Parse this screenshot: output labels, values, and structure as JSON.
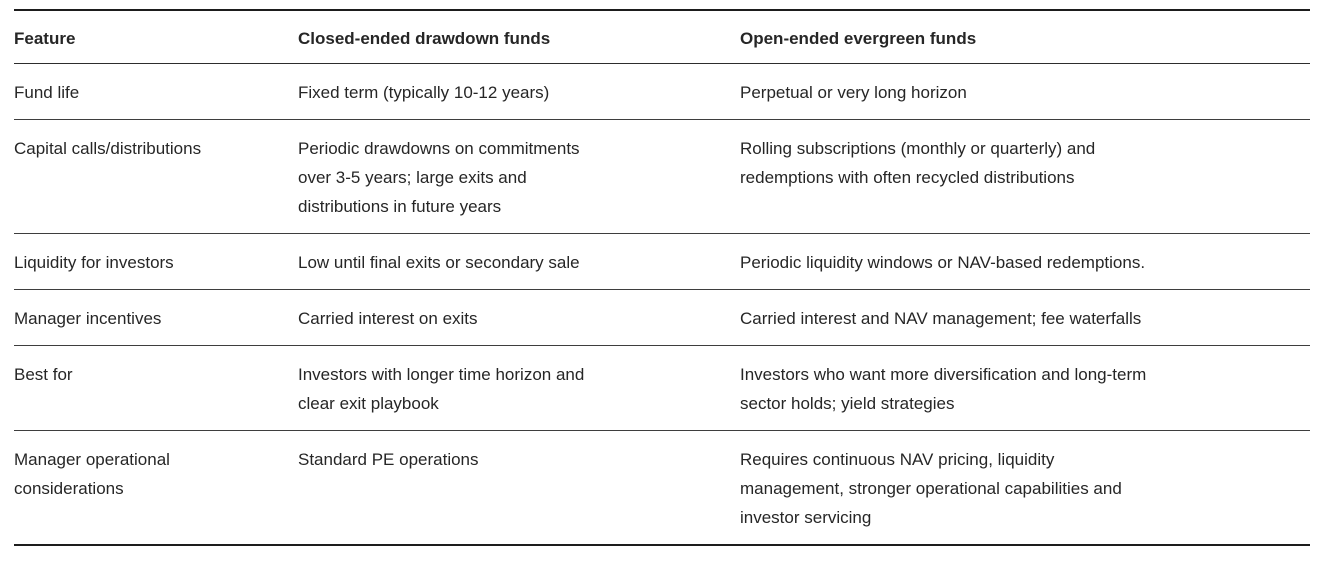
{
  "colors": {
    "background": "#ffffff",
    "text": "#262626",
    "rule_strong": "#1d1d1d",
    "rule_row": "#3e3e3e"
  },
  "table": {
    "columns": [
      "Feature",
      "Closed-ended drawdown funds",
      "Open-ended evergreen funds"
    ],
    "rows": [
      {
        "feature": "Fund life",
        "closed": "Fixed term (typically 10-12 years)",
        "open": "Perpetual or very long horizon"
      },
      {
        "feature": "Capital calls/distributions",
        "closed": "Periodic drawdowns on commitments\nover 3-5 years; large exits and\ndistributions in future years",
        "open": "Rolling subscriptions (monthly or quarterly) and\nredemptions with often recycled distributions"
      },
      {
        "feature": "Liquidity for investors",
        "closed": "Low until final exits or secondary sale",
        "open": "Periodic liquidity windows or NAV-based redemptions."
      },
      {
        "feature": "Manager incentives",
        "closed": "Carried interest on exits",
        "open": "Carried interest and NAV management; fee waterfalls"
      },
      {
        "feature": "Best for",
        "closed": "Investors with longer time horizon and\nclear exit playbook",
        "open": "Investors who want more diversification and long-term\nsector holds; yield strategies"
      },
      {
        "feature": "Manager operational\nconsiderations",
        "closed": "Standard PE operations",
        "open": "Requires continuous NAV pricing, liquidity\nmanagement, stronger operational capabilities and\ninvestor servicing"
      }
    ]
  }
}
